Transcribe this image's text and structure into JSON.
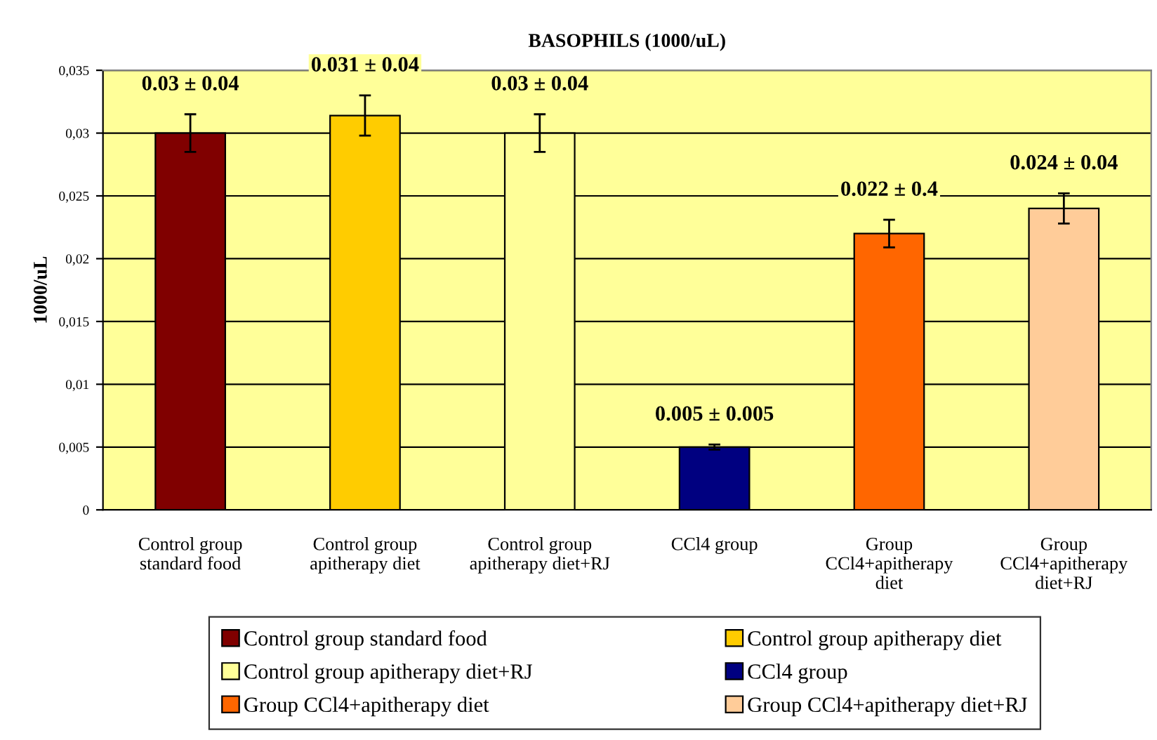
{
  "chart_data": {
    "type": "bar",
    "title": "BASOPHILS (1000/uL)",
    "ylabel": "1000/uL",
    "categories": [
      "Control group\nstandard food",
      "Control group\napitherapy diet",
      "Control group\napitherapy diet+RJ",
      "CCl4 group",
      "Group\nCCl4+apitherapy\ndiet",
      "Group\nCCl4+apitherapy\ndiet+RJ"
    ],
    "series": [
      {
        "name": "Control group standard food",
        "color": "#800000",
        "values": [
          0.03,
          null,
          null,
          null,
          null,
          null
        ],
        "errors": [
          0.0015,
          null,
          null,
          null,
          null,
          null
        ],
        "value_labels": [
          "0.03 ± 0.04",
          null,
          null,
          null,
          null,
          null
        ]
      },
      {
        "name": "Control group apitherapy diet",
        "color": "#ffcc00",
        "values": [
          null,
          0.0314,
          null,
          null,
          null,
          null
        ],
        "errors": [
          null,
          0.0016,
          null,
          null,
          null,
          null
        ],
        "value_labels": [
          null,
          "0.031 ± 0.04",
          null,
          null,
          null,
          null
        ]
      },
      {
        "name": "Control group apitherapy diet+RJ",
        "color": "#ffff99",
        "values": [
          null,
          null,
          0.03,
          null,
          null,
          null
        ],
        "errors": [
          null,
          null,
          0.0015,
          null,
          null,
          null
        ],
        "value_labels": [
          null,
          null,
          "0.03 ± 0.04",
          null,
          null,
          null
        ]
      },
      {
        "name": "CCl4 group",
        "color": "#000080",
        "values": [
          null,
          null,
          null,
          0.005,
          null,
          null
        ],
        "errors": [
          null,
          null,
          null,
          0.0002,
          null,
          null
        ],
        "value_labels": [
          null,
          null,
          null,
          "0.005 ± 0.005",
          null,
          null
        ]
      },
      {
        "name": "Group CCl4+apitherapy diet",
        "color": "#ff6600",
        "values": [
          null,
          null,
          null,
          null,
          0.022,
          null
        ],
        "errors": [
          null,
          null,
          null,
          null,
          0.0011,
          null
        ],
        "value_labels": [
          null,
          null,
          null,
          null,
          "0.022 ± 0.4",
          null
        ]
      },
      {
        "name": "Group CCl4+apitherapy diet+RJ",
        "color": "#ffcc99",
        "values": [
          null,
          null,
          null,
          null,
          null,
          0.024
        ],
        "errors": [
          null,
          null,
          null,
          null,
          null,
          0.0012
        ],
        "value_labels": [
          null,
          null,
          null,
          null,
          null,
          "0.024 ± 0.04"
        ]
      }
    ],
    "ylim": [
      0,
      0.035
    ],
    "yticks": [
      {
        "value": 0,
        "label": "0"
      },
      {
        "value": 0.005,
        "label": "0,005"
      },
      {
        "value": 0.01,
        "label": "0,01"
      },
      {
        "value": 0.015,
        "label": "0,015"
      },
      {
        "value": 0.02,
        "label": "0,02"
      },
      {
        "value": 0.025,
        "label": "0,025"
      },
      {
        "value": 0.03,
        "label": "0,03"
      },
      {
        "value": 0.035,
        "label": "0,035"
      }
    ],
    "grid": "y",
    "legend": "bottom"
  }
}
